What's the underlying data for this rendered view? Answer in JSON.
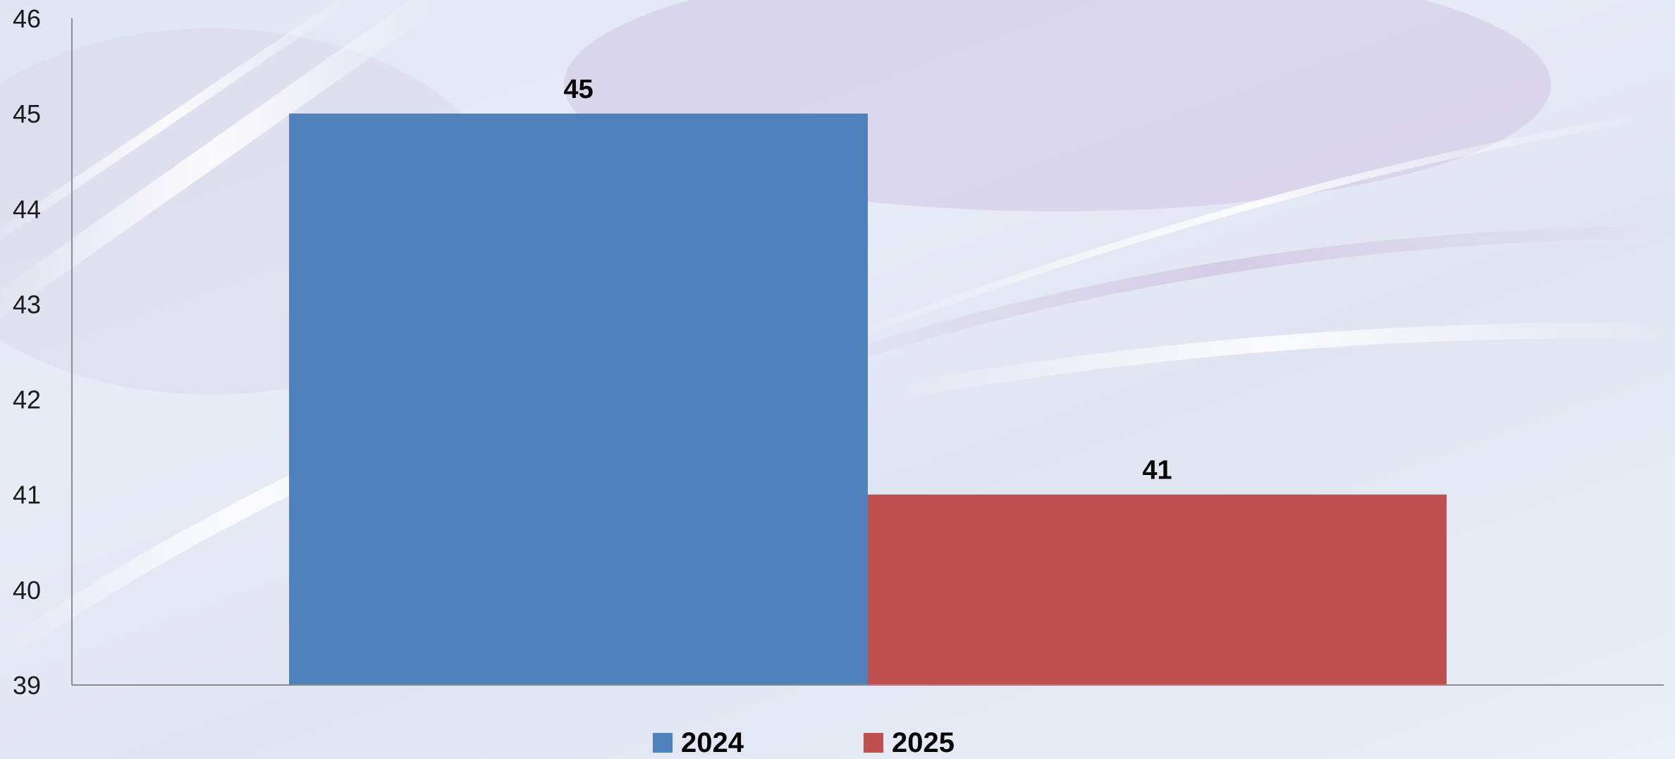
{
  "chart_data": {
    "type": "bar",
    "categories": [
      ""
    ],
    "series": [
      {
        "name": "2024",
        "values": [
          45
        ],
        "color": "#4F81BD"
      },
      {
        "name": "2025",
        "values": [
          41
        ],
        "color": "#C0504D"
      }
    ],
    "data_labels": [
      "45",
      "41"
    ],
    "ylim": [
      39,
      46
    ],
    "yticks": [
      39,
      40,
      41,
      42,
      43,
      44,
      45,
      46
    ],
    "title": "",
    "xlabel": "",
    "ylabel": "",
    "grid": false,
    "legend_position": "bottom"
  }
}
